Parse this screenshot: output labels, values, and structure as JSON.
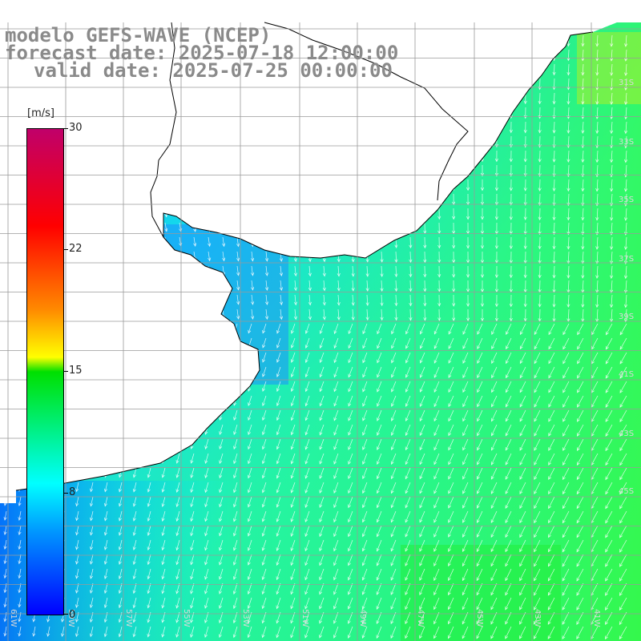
{
  "title": {
    "model": "modelo GEFS-WAVE (NCEP)",
    "forecast": "forecast date: 2025-07-18 12:00:00",
    "valid": "valid date: 2025-07-25 00:00:00"
  },
  "colorbar": {
    "unit": "[m/s]",
    "min": 0,
    "max": 30,
    "ticks": [
      "0",
      "8",
      "15",
      "22",
      "30"
    ]
  },
  "map": {
    "variable": "wind speed and direction",
    "lon_labels": [
      "61W",
      "59W",
      "57W",
      "55W",
      "53W",
      "51W",
      "49W",
      "47W",
      "45W",
      "43W",
      "41W"
    ],
    "lat_labels": [
      "31S",
      "33S",
      "35S",
      "37S",
      "39S",
      "41S",
      "43S",
      "45S"
    ],
    "colors": {
      "land": "#ffffff",
      "coastline": "#000000",
      "grid": "#9a9a9a",
      "arrows": "#ffffff",
      "title": "#8a8a8a"
    }
  }
}
